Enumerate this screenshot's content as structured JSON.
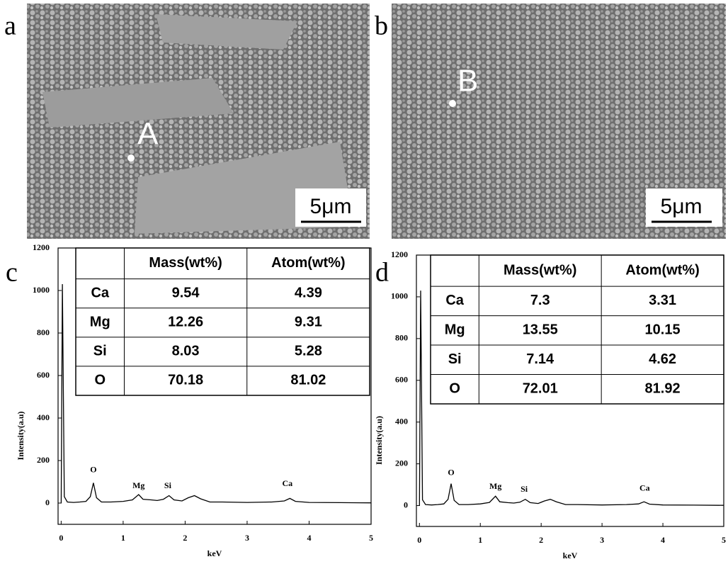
{
  "images": [
    {
      "label": "a",
      "marker": "A",
      "scale": "5μm"
    },
    {
      "label": "b",
      "marker": "B",
      "scale": "5μm"
    }
  ],
  "chart_data": [
    {
      "type": "line",
      "label": "c",
      "xlabel": "keV",
      "ylabel": "Intensity(a.u)",
      "x": [
        0,
        0.02,
        0.05,
        0.1,
        0.2,
        0.3,
        0.4,
        0.47,
        0.52,
        0.57,
        0.65,
        0.8,
        1.0,
        1.15,
        1.25,
        1.32,
        1.45,
        1.55,
        1.65,
        1.74,
        1.82,
        1.95,
        2.05,
        2.15,
        2.25,
        2.4,
        2.6,
        3.0,
        3.4,
        3.6,
        3.69,
        3.78,
        4.0,
        4.5,
        5.0
      ],
      "series": [
        {
          "color": "#000000",
          "values": [
            0,
            1030,
            30,
            5,
            3,
            5,
            8,
            30,
            95,
            25,
            5,
            5,
            8,
            15,
            40,
            18,
            15,
            12,
            18,
            35,
            15,
            10,
            25,
            35,
            20,
            5,
            5,
            3,
            5,
            10,
            22,
            8,
            3,
            2,
            1
          ]
        }
      ],
      "xlim": [
        -0.05,
        5
      ],
      "ylim": [
        -100,
        1200
      ],
      "xticks": [
        0,
        1,
        2,
        3,
        4,
        5
      ],
      "yticks": [
        0,
        200,
        400,
        600,
        800,
        1000,
        1200
      ],
      "annotations": [
        {
          "text": "O",
          "x": 0.52,
          "y": 155
        },
        {
          "text": "Mg",
          "x": 1.25,
          "y": 80
        },
        {
          "text": "Si",
          "x": 1.72,
          "y": 80
        },
        {
          "text": "Ca",
          "x": 3.65,
          "y": 90
        }
      ],
      "table": {
        "columns": [
          "Mass(wt%)",
          "Atom(wt%)"
        ],
        "rows": [
          [
            "Ca",
            "9.54",
            "4.39"
          ],
          [
            "Mg",
            "12.26",
            "9.31"
          ],
          [
            "Si",
            "8.03",
            "5.28"
          ],
          [
            "O",
            "70.18",
            "81.02"
          ]
        ]
      }
    },
    {
      "type": "line",
      "label": "d",
      "xlabel": "keV",
      "ylabel": "Intensity(a.u)",
      "x": [
        0,
        0.02,
        0.05,
        0.1,
        0.2,
        0.3,
        0.4,
        0.47,
        0.52,
        0.57,
        0.65,
        0.8,
        1.0,
        1.15,
        1.25,
        1.32,
        1.45,
        1.55,
        1.65,
        1.74,
        1.82,
        1.95,
        2.05,
        2.15,
        2.25,
        2.4,
        2.6,
        3.0,
        3.4,
        3.6,
        3.69,
        3.78,
        4.0,
        4.5,
        5.0
      ],
      "series": [
        {
          "color": "#000000",
          "values": [
            0,
            1030,
            28,
            5,
            3,
            5,
            8,
            30,
            105,
            25,
            5,
            5,
            8,
            15,
            45,
            18,
            14,
            12,
            16,
            30,
            14,
            10,
            22,
            30,
            18,
            5,
            5,
            3,
            5,
            8,
            18,
            7,
            3,
            2,
            1
          ]
        }
      ],
      "xlim": [
        -0.05,
        5
      ],
      "ylim": [
        -100,
        1200
      ],
      "xticks": [
        0,
        1,
        2,
        3,
        4,
        5
      ],
      "yticks": [
        0,
        200,
        400,
        600,
        800,
        1000,
        1200
      ],
      "annotations": [
        {
          "text": "O",
          "x": 0.52,
          "y": 155
        },
        {
          "text": "Mg",
          "x": 1.25,
          "y": 90
        },
        {
          "text": "Si",
          "x": 1.72,
          "y": 75
        },
        {
          "text": "Ca",
          "x": 3.7,
          "y": 80
        }
      ],
      "table": {
        "columns": [
          "Mass(wt%)",
          "Atom(wt%)"
        ],
        "rows": [
          [
            "Ca",
            "7.3",
            "3.31"
          ],
          [
            "Mg",
            "13.55",
            "10.15"
          ],
          [
            "Si",
            "7.14",
            "4.62"
          ],
          [
            "O",
            "72.01",
            "81.92"
          ]
        ]
      }
    }
  ]
}
